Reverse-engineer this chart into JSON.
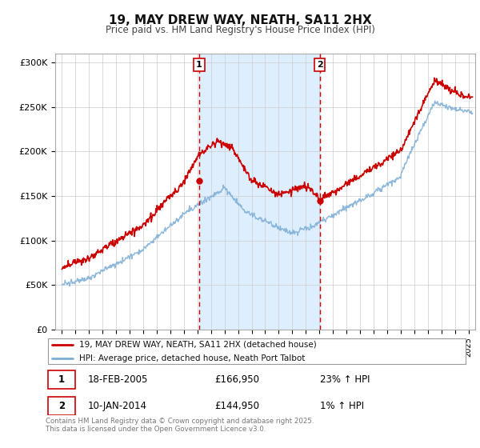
{
  "title": "19, MAY DREW WAY, NEATH, SA11 2HX",
  "subtitle": "Price paid vs. HM Land Registry's House Price Index (HPI)",
  "legend_entries": [
    "19, MAY DREW WAY, NEATH, SA11 2HX (detached house)",
    "HPI: Average price, detached house, Neath Port Talbot"
  ],
  "sale1_date": "18-FEB-2005",
  "sale1_price": "£166,950",
  "sale1_hpi": "23% ↑ HPI",
  "sale2_date": "10-JAN-2014",
  "sale2_price": "£144,950",
  "sale2_hpi": "1% ↑ HPI",
  "vline1_x": 2005.12,
  "vline2_x": 2014.03,
  "sale1_marker_x": 2005.12,
  "sale1_marker_y": 166950,
  "sale2_marker_x": 2014.03,
  "sale2_marker_y": 144950,
  "red_line_color": "#cc0000",
  "blue_line_color": "#7aadd4",
  "vline_color": "#cc0000",
  "shaded_color": "#ddeeff",
  "background_color": "#ffffff",
  "footer_text": "Contains HM Land Registry data © Crown copyright and database right 2025.\nThis data is licensed under the Open Government Licence v3.0.",
  "ylim": [
    0,
    310000
  ],
  "yticks": [
    0,
    50000,
    100000,
    150000,
    200000,
    250000,
    300000
  ],
  "ytick_labels": [
    "£0",
    "£50K",
    "£100K",
    "£150K",
    "£200K",
    "£250K",
    "£300K"
  ],
  "xlim_start": 1994.5,
  "xlim_end": 2025.5
}
